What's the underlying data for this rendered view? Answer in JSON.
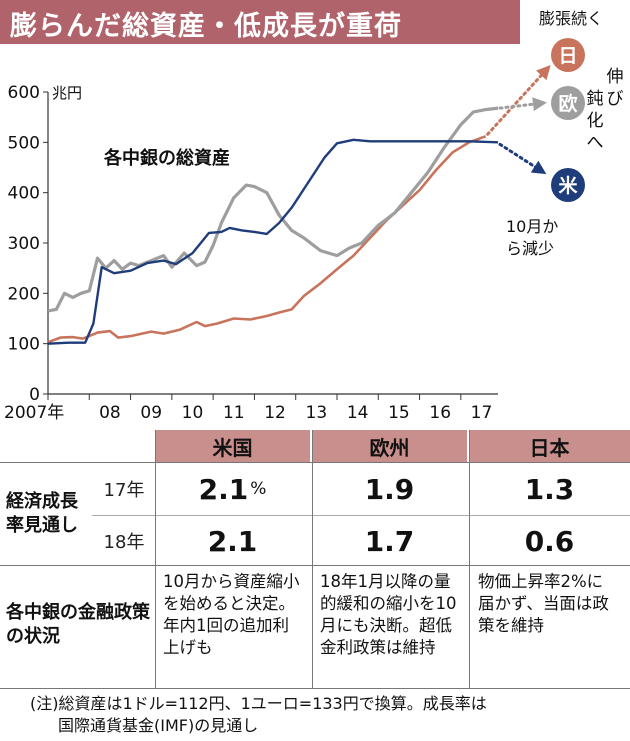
{
  "header": {
    "title": "膨らんだ総資産・低成長が重荷"
  },
  "chart_data": {
    "type": "line",
    "title": "各中銀の総資産",
    "ylabel": "兆円",
    "ylim": [
      0,
      600
    ],
    "yticks": [
      "0",
      "100",
      "200",
      "300",
      "400",
      "500",
      "600"
    ],
    "xticks": [
      "2007年",
      "08",
      "09",
      "10",
      "11",
      "12",
      "13",
      "14",
      "15",
      "16",
      "17"
    ],
    "xlim": [
      2007.0,
      2017.9
    ],
    "series": [
      {
        "name": "日",
        "color": "#c8735b",
        "points": [
          [
            2007.0,
            103
          ],
          [
            2007.3,
            112
          ],
          [
            2007.6,
            113
          ],
          [
            2007.85,
            110
          ],
          [
            2008.2,
            122
          ],
          [
            2008.5,
            125
          ],
          [
            2008.7,
            112
          ],
          [
            2009.0,
            115
          ],
          [
            2009.5,
            124
          ],
          [
            2009.8,
            120
          ],
          [
            2010.2,
            128
          ],
          [
            2010.6,
            143
          ],
          [
            2010.8,
            135
          ],
          [
            2011.1,
            140
          ],
          [
            2011.5,
            150
          ],
          [
            2011.9,
            148
          ],
          [
            2012.3,
            155
          ],
          [
            2012.6,
            162
          ],
          [
            2012.9,
            168
          ],
          [
            2013.2,
            195
          ],
          [
            2013.6,
            220
          ],
          [
            2014.0,
            248
          ],
          [
            2014.4,
            275
          ],
          [
            2014.8,
            310
          ],
          [
            2015.2,
            345
          ],
          [
            2015.6,
            375
          ],
          [
            2016.0,
            405
          ],
          [
            2016.4,
            445
          ],
          [
            2016.8,
            480
          ],
          [
            2017.2,
            500
          ],
          [
            2017.6,
            512
          ]
        ]
      },
      {
        "name": "欧",
        "color": "#9e9e9e",
        "points": [
          [
            2007.0,
            165
          ],
          [
            2007.2,
            168
          ],
          [
            2007.4,
            200
          ],
          [
            2007.6,
            192
          ],
          [
            2007.8,
            200
          ],
          [
            2008.0,
            205
          ],
          [
            2008.2,
            270
          ],
          [
            2008.4,
            250
          ],
          [
            2008.6,
            265
          ],
          [
            2008.8,
            248
          ],
          [
            2009.0,
            260
          ],
          [
            2009.2,
            255
          ],
          [
            2009.5,
            265
          ],
          [
            2009.8,
            275
          ],
          [
            2010.0,
            252
          ],
          [
            2010.3,
            280
          ],
          [
            2010.6,
            255
          ],
          [
            2010.8,
            262
          ],
          [
            2011.0,
            295
          ],
          [
            2011.2,
            340
          ],
          [
            2011.5,
            390
          ],
          [
            2011.8,
            415
          ],
          [
            2012.0,
            412
          ],
          [
            2012.3,
            400
          ],
          [
            2012.6,
            355
          ],
          [
            2012.9,
            325
          ],
          [
            2013.2,
            310
          ],
          [
            2013.6,
            285
          ],
          [
            2014.0,
            275
          ],
          [
            2014.3,
            290
          ],
          [
            2014.6,
            300
          ],
          [
            2015.0,
            335
          ],
          [
            2015.4,
            360
          ],
          [
            2015.8,
            400
          ],
          [
            2016.2,
            440
          ],
          [
            2016.6,
            490
          ],
          [
            2017.0,
            535
          ],
          [
            2017.3,
            560
          ],
          [
            2017.6,
            565
          ],
          [
            2017.9,
            568
          ]
        ]
      },
      {
        "name": "米",
        "color": "#1f3d7a",
        "points": [
          [
            2007.0,
            100
          ],
          [
            2007.5,
            102
          ],
          [
            2007.9,
            102
          ],
          [
            2008.1,
            140
          ],
          [
            2008.3,
            252
          ],
          [
            2008.6,
            240
          ],
          [
            2009.0,
            245
          ],
          [
            2009.4,
            260
          ],
          [
            2009.8,
            265
          ],
          [
            2010.1,
            258
          ],
          [
            2010.5,
            280
          ],
          [
            2010.9,
            320
          ],
          [
            2011.2,
            322
          ],
          [
            2011.4,
            330
          ],
          [
            2011.7,
            325
          ],
          [
            2012.0,
            322
          ],
          [
            2012.3,
            318
          ],
          [
            2012.6,
            340
          ],
          [
            2012.9,
            370
          ],
          [
            2013.3,
            420
          ],
          [
            2013.7,
            470
          ],
          [
            2014.0,
            498
          ],
          [
            2014.4,
            505
          ],
          [
            2014.8,
            502
          ],
          [
            2015.4,
            502
          ],
          [
            2016.0,
            502
          ],
          [
            2016.6,
            502
          ],
          [
            2017.2,
            502
          ],
          [
            2017.9,
            500
          ]
        ]
      }
    ],
    "annotations": {
      "jp": {
        "label": "日",
        "note": "膨張続く"
      },
      "eu": {
        "label": "欧",
        "note": "伸び鈍化へ"
      },
      "us": {
        "label": "米",
        "note": "10月から減少"
      }
    }
  },
  "table": {
    "headers": [
      "米国",
      "欧州",
      "日本"
    ],
    "growth_label": "経済成長率見通し",
    "rows": [
      {
        "year": "17年",
        "values": [
          "2.1",
          "1.9",
          "1.3"
        ],
        "unit": "%"
      },
      {
        "year": "18年",
        "values": [
          "2.1",
          "1.7",
          "0.6"
        ]
      }
    ],
    "policy_label": "各中銀の金融政策の状況",
    "policy": [
      "10月から資産縮小を始めると決定。年内1回の追加利上げも",
      "18年1月以降の量的緩和の縮小を10月にも決断。超低金利政策は維持",
      "物価上昇率2%に届かず、当面は政策を維持"
    ]
  },
  "note": {
    "line1": "(注)総資産は1ドル=112円、1ユーロ=133円で換算。成長率は",
    "line2": "国際通貨基金(IMF)の見通し"
  }
}
